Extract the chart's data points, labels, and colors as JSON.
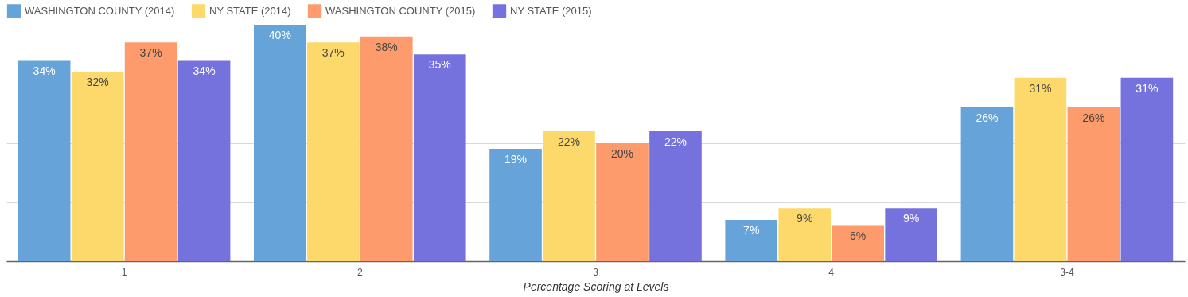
{
  "chart_data": {
    "type": "bar",
    "xlabel": "Percentage Scoring at Levels",
    "categories": [
      "1",
      "2",
      "3",
      "4",
      "3-4"
    ],
    "series": [
      {
        "name": "WASHINGTON COUNTY (2014)",
        "color": "#66a3d9",
        "values": [
          34,
          40,
          19,
          7,
          26
        ],
        "value_labels": [
          "34%",
          "40%",
          "19%",
          "7%",
          "26%"
        ]
      },
      {
        "name": "NY STATE (2014)",
        "color": "#fdd96b",
        "values": [
          32,
          37,
          22,
          9,
          31
        ],
        "value_labels": [
          "32%",
          "37%",
          "22%",
          "9%",
          "31%"
        ]
      },
      {
        "name": "WASHINGTON COUNTY (2015)",
        "color": "#fd9b6d",
        "values": [
          37,
          38,
          20,
          6,
          26
        ],
        "value_labels": [
          "37%",
          "38%",
          "20%",
          "6%",
          "26%"
        ]
      },
      {
        "name": "NY STATE (2015)",
        "color": "#7672dd",
        "values": [
          34,
          35,
          22,
          9,
          31
        ],
        "value_labels": [
          "34%",
          "35%",
          "22%",
          "9%",
          "31%"
        ]
      }
    ],
    "tick_labels": "x",
    "grid": "y",
    "legend": "top left"
  }
}
